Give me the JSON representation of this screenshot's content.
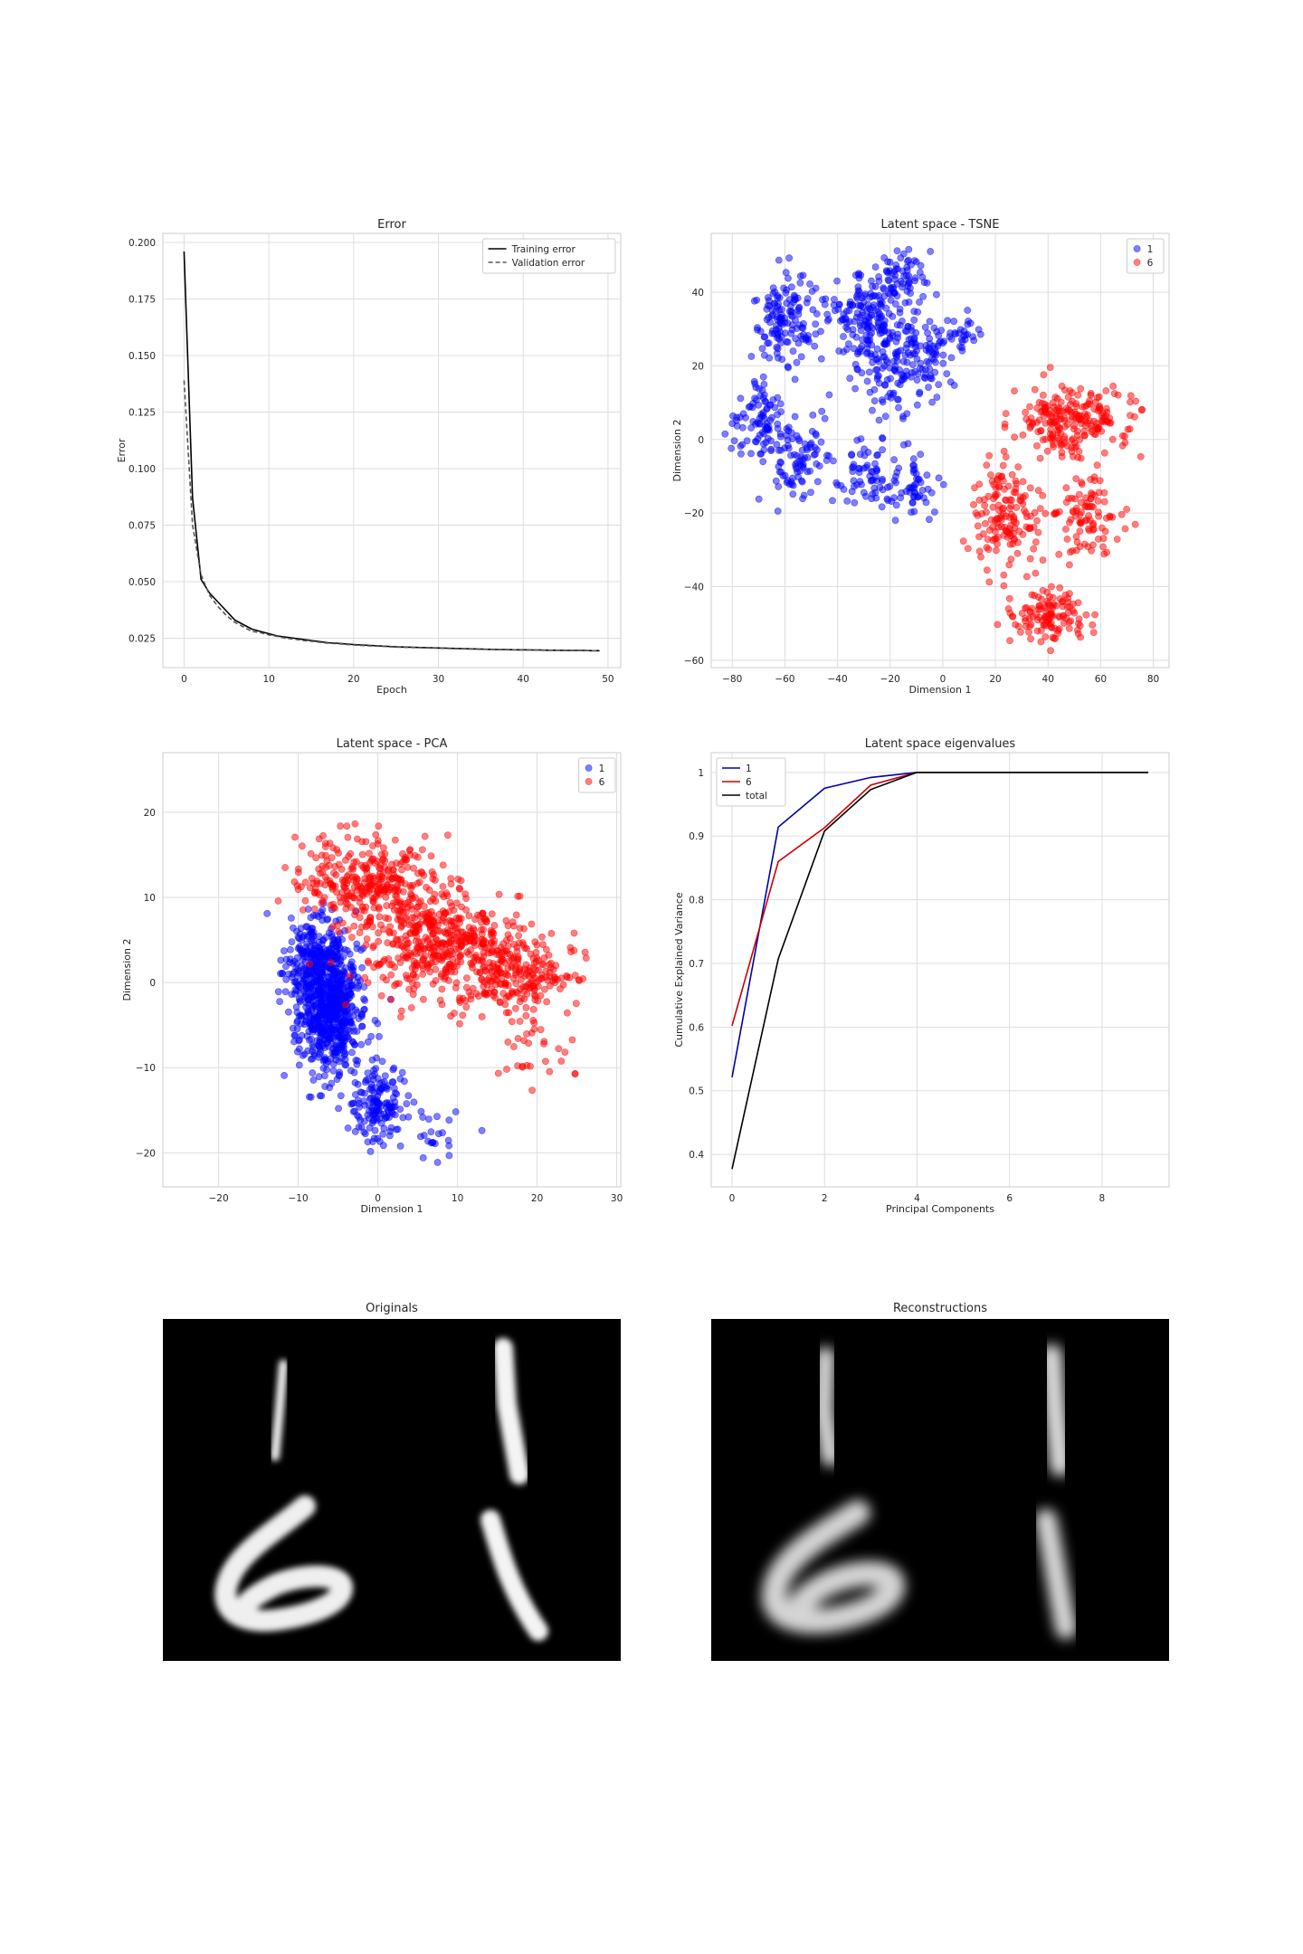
{
  "chart_data": [
    {
      "type": "line",
      "title": "Error",
      "xlabel": "Epoch",
      "ylabel": "Error",
      "xlim": [
        -2.5,
        51.5
      ],
      "ylim": [
        0.012,
        0.204
      ],
      "xticks": [
        0,
        10,
        20,
        30,
        40,
        50
      ],
      "yticks": [
        0.025,
        0.05,
        0.075,
        0.1,
        0.125,
        0.15,
        0.175,
        0.2
      ],
      "ytick_labels": [
        "0.025",
        "0.050",
        "0.075",
        "0.100",
        "0.125",
        "0.150",
        "0.175",
        "0.200"
      ],
      "grid": true,
      "legend": "top-right",
      "x": [
        0,
        1,
        2,
        3,
        4,
        5,
        6,
        7,
        8,
        9,
        10,
        11,
        12,
        13,
        14,
        15,
        16,
        17,
        18,
        19,
        20,
        21,
        22,
        23,
        24,
        25,
        26,
        27,
        28,
        29,
        30,
        31,
        32,
        33,
        34,
        35,
        36,
        37,
        38,
        39,
        40,
        41,
        42,
        43,
        44,
        45,
        46,
        47,
        48,
        49
      ],
      "series": [
        {
          "name": "Training error",
          "color": "#000000",
          "dash": "solid",
          "values": [
            0.196,
            0.087,
            0.051,
            0.045,
            0.041,
            0.037,
            0.033,
            0.031,
            0.029,
            0.028,
            0.027,
            0.026,
            0.0255,
            0.025,
            0.0245,
            0.024,
            0.0235,
            0.023,
            0.0228,
            0.0225,
            0.0222,
            0.022,
            0.0218,
            0.0216,
            0.0214,
            0.0212,
            0.0211,
            0.021,
            0.0209,
            0.0208,
            0.0207,
            0.0206,
            0.0205,
            0.0204,
            0.0203,
            0.0202,
            0.0201,
            0.02,
            0.02,
            0.0199,
            0.0199,
            0.0198,
            0.0198,
            0.0197,
            0.0197,
            0.0196,
            0.0196,
            0.0196,
            0.0195,
            0.0195
          ]
        },
        {
          "name": "Validation error",
          "color": "#555555",
          "dash": "dashed",
          "values": [
            0.139,
            0.075,
            0.053,
            0.044,
            0.039,
            0.035,
            0.032,
            0.03,
            0.028,
            0.0275,
            0.0265,
            0.0258,
            0.025,
            0.0246,
            0.024,
            0.0237,
            0.0232,
            0.0228,
            0.0226,
            0.0223,
            0.022,
            0.0218,
            0.0216,
            0.0215,
            0.0213,
            0.0211,
            0.021,
            0.0209,
            0.0208,
            0.0207,
            0.0206,
            0.0205,
            0.0204,
            0.0203,
            0.0202,
            0.0201,
            0.0201,
            0.02,
            0.0199,
            0.0199,
            0.0198,
            0.0198,
            0.0197,
            0.0197,
            0.0197,
            0.0196,
            0.0196,
            0.0196,
            0.0195,
            0.0195
          ]
        }
      ]
    },
    {
      "type": "scatter",
      "title": "Latent space - TSNE",
      "xlabel": "Dimension 1",
      "ylabel": "Dimension 2",
      "xlim": [
        -88,
        86
      ],
      "ylim": [
        -62,
        56
      ],
      "xticks": [
        -80,
        -60,
        -40,
        -20,
        0,
        20,
        40,
        60,
        80
      ],
      "yticks": [
        -60,
        -40,
        -20,
        0,
        20,
        40
      ],
      "grid": true,
      "legend": "top-right",
      "series": [
        {
          "name": "1",
          "color": "#0000ff",
          "clusters": [
            [
              -70,
              5,
              8,
              10,
              90
            ],
            [
              -60,
              32,
              10,
              9,
              130
            ],
            [
              -55,
              -6,
              9,
              10,
              90
            ],
            [
              -30,
              35,
              15,
              9,
              160
            ],
            [
              -15,
              45,
              8,
              6,
              60
            ],
            [
              -20,
              20,
              12,
              10,
              130
            ],
            [
              -28,
              -10,
              9,
              8,
              70
            ],
            [
              -10,
              -12,
              8,
              7,
              50
            ],
            [
              -5,
              25,
              9,
              9,
              60
            ],
            [
              8,
              28,
              5,
              4,
              25
            ]
          ]
        },
        {
          "name": "6",
          "color": "#ff0000",
          "clusters": [
            [
              50,
              5,
              18,
              8,
              220
            ],
            [
              25,
              -20,
              12,
              12,
              150
            ],
            [
              55,
              -20,
              10,
              10,
              90
            ],
            [
              40,
              -48,
              12,
              6,
              120
            ]
          ]
        }
      ]
    },
    {
      "type": "scatter",
      "title": "Latent space - PCA",
      "xlabel": "Dimension 1",
      "ylabel": "Dimension 2",
      "xlim": [
        -27,
        30.5
      ],
      "ylim": [
        -24,
        27
      ],
      "xticks": [
        -20,
        -10,
        0,
        10,
        20,
        30
      ],
      "yticks": [
        -20,
        -10,
        0,
        10,
        20
      ],
      "grid": true,
      "legend": "top-right",
      "series": [
        {
          "name": "1",
          "color": "#0000ff",
          "clusters": [
            [
              -6,
              -3,
              3.5,
              6,
              700
            ],
            [
              -8,
              3,
              3,
              4,
              200
            ],
            [
              0,
              -14,
              3,
              3.5,
              150
            ],
            [
              6,
              -18,
              4,
              3,
              25
            ]
          ]
        },
        {
          "name": "6",
          "color": "#ff0000",
          "clusters": [
            [
              7,
              5,
              8,
              5,
              450
            ],
            [
              0,
              12,
              6,
              4,
              220
            ],
            [
              17,
              1,
              6,
              4,
              250
            ],
            [
              -6,
              12,
              4,
              4,
              80
            ],
            [
              20,
              -8,
              4,
              4,
              30
            ]
          ]
        }
      ]
    },
    {
      "type": "line",
      "title": "Latent space eigenvalues",
      "xlabel": "Principal Components",
      "ylabel": "Cumulative Explained Variance",
      "xlim": [
        -0.45,
        9.45
      ],
      "ylim": [
        0.349,
        1.031
      ],
      "xticks": [
        0,
        2,
        4,
        6,
        8
      ],
      "yticks": [
        0.4,
        0.5,
        0.6,
        0.7,
        0.8,
        0.9,
        1.0
      ],
      "grid": true,
      "legend": "top-left",
      "x": [
        0,
        1,
        2,
        3,
        4,
        5,
        6,
        7,
        8,
        9
      ],
      "series": [
        {
          "name": "1",
          "color": "#0000aa",
          "values": [
            0.521,
            0.914,
            0.975,
            0.992,
            1.0,
            1.0,
            1.0,
            1.0,
            1.0,
            1.0
          ]
        },
        {
          "name": "6",
          "color": "#cc0000",
          "values": [
            0.602,
            0.86,
            0.913,
            0.98,
            1.0,
            1.0,
            1.0,
            1.0,
            1.0,
            1.0
          ]
        },
        {
          "name": "total",
          "color": "#000000",
          "values": [
            0.377,
            0.707,
            0.908,
            0.973,
            1.0,
            1.0,
            1.0,
            1.0,
            1.0,
            1.0
          ]
        }
      ]
    }
  ],
  "images": [
    {
      "title": "Originals",
      "digits": [
        "1",
        "1",
        "6",
        "1"
      ]
    },
    {
      "title": "Reconstructions",
      "digits": [
        "1",
        "1",
        "6",
        "1"
      ]
    }
  ]
}
